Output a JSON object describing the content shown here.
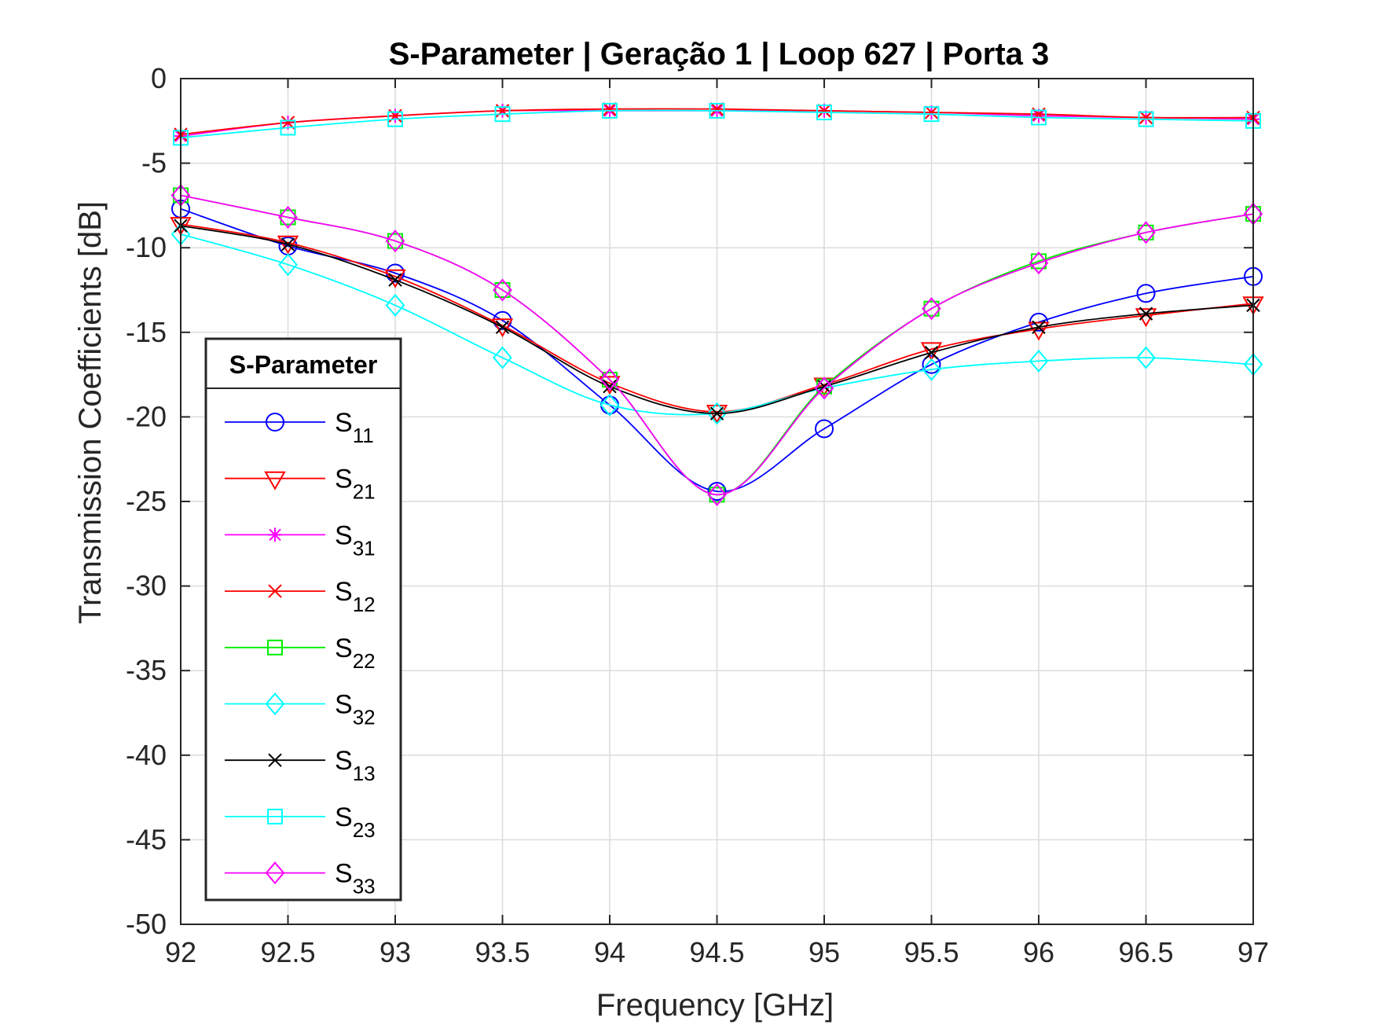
{
  "chart_data": {
    "type": "line",
    "title": "S-Parameter  |  Geração 1  |  Loop 627  |  Porta 3",
    "xlabel": "Frequency [GHz]",
    "ylabel": "Transmission Coefficients [dB]",
    "xlim": [
      92,
      97
    ],
    "ylim": [
      -50,
      0
    ],
    "xticks": [
      "92",
      "92.5",
      "93",
      "93.5",
      "94",
      "94.5",
      "95",
      "95.5",
      "96",
      "96.5",
      "97"
    ],
    "yticks": [
      "0",
      "-5",
      "-10",
      "-15",
      "-20",
      "-25",
      "-30",
      "-35",
      "-40",
      "-45",
      "-50"
    ],
    "grid": true,
    "legend": {
      "title": "S-Parameter",
      "placement": "left"
    },
    "x": [
      92,
      92.5,
      93,
      93.5,
      94,
      94.5,
      95,
      95.5,
      96,
      96.5,
      97
    ],
    "series": [
      {
        "name": "S",
        "sub": "11",
        "color": "#0000ff",
        "marker": "circle",
        "values": [
          -7.7,
          -9.9,
          -11.5,
          -14.3,
          -19.3,
          -24.4,
          -20.7,
          -16.9,
          -14.4,
          -12.7,
          -11.7
        ]
      },
      {
        "name": "S",
        "sub": "21",
        "color": "#ff0000",
        "marker": "triangle-down",
        "values": [
          -8.6,
          -9.7,
          -11.7,
          -14.6,
          -18.0,
          -19.7,
          -18.1,
          -16.0,
          -14.8,
          -14.0,
          -13.3
        ]
      },
      {
        "name": "S",
        "sub": "31",
        "color": "#ff00ff",
        "marker": "asterisk",
        "values": [
          -3.4,
          -2.6,
          -2.2,
          -1.9,
          -1.9,
          -1.9,
          -1.9,
          -2.0,
          -2.2,
          -2.3,
          -2.4
        ]
      },
      {
        "name": "S",
        "sub": "12",
        "color": "#ff0000",
        "marker": "x",
        "values": [
          -3.3,
          -2.6,
          -2.2,
          -1.9,
          -1.8,
          -1.8,
          -1.9,
          -2.0,
          -2.1,
          -2.3,
          -2.3
        ]
      },
      {
        "name": "S",
        "sub": "22",
        "color": "#00ee00",
        "marker": "square",
        "values": [
          -6.9,
          -8.2,
          -9.6,
          -12.5,
          -17.8,
          -24.6,
          -18.2,
          -13.6,
          -10.8,
          -9.1,
          -8.0
        ]
      },
      {
        "name": "S",
        "sub": "32",
        "color": "#00ffff",
        "marker": "diamond",
        "values": [
          -9.2,
          -11.0,
          -13.4,
          -16.5,
          -19.3,
          -19.8,
          -18.3,
          -17.2,
          -16.7,
          -16.5,
          -16.9
        ]
      },
      {
        "name": "S",
        "sub": "13",
        "color": "#000000",
        "marker": "x",
        "values": [
          -8.7,
          -9.8,
          -11.9,
          -14.7,
          -18.2,
          -19.8,
          -18.2,
          -16.2,
          -14.7,
          -13.9,
          -13.4
        ]
      },
      {
        "name": "S",
        "sub": "23",
        "color": "#00ffff",
        "marker": "square",
        "values": [
          -3.5,
          -2.9,
          -2.4,
          -2.1,
          -1.9,
          -1.9,
          -2.0,
          -2.1,
          -2.3,
          -2.4,
          -2.5
        ]
      },
      {
        "name": "S",
        "sub": "33",
        "color": "#ff00ff",
        "marker": "diamond",
        "values": [
          -6.9,
          -8.2,
          -9.6,
          -12.5,
          -17.8,
          -24.6,
          -18.3,
          -13.6,
          -10.9,
          -9.1,
          -8.0
        ]
      }
    ]
  }
}
